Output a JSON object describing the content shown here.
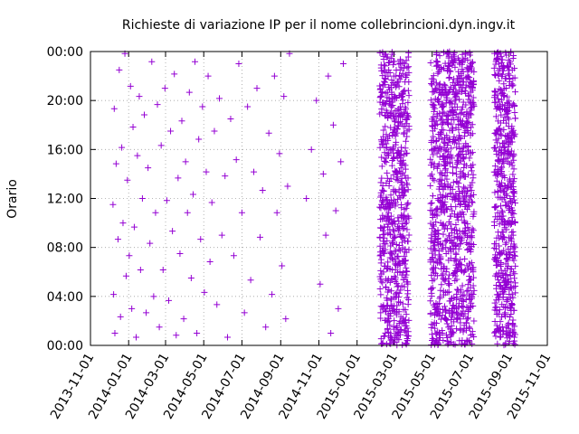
{
  "chart_data": {
    "type": "scatter",
    "title": "Richieste di variazione IP per il nome collebrincioni.dyn.ingv.it",
    "xlabel": "",
    "ylabel": "Orario",
    "x_range": [
      "2013-11-01",
      "2015-11-01"
    ],
    "y_range": [
      "00:00",
      "24:00"
    ],
    "x_ticks": [
      "2013-11-01",
      "2014-01-01",
      "2014-03-01",
      "2014-05-01",
      "2014-07-01",
      "2014-09-01",
      "2014-11-01",
      "2015-01-01",
      "2015-03-01",
      "2015-05-01",
      "2015-07-01",
      "2015-09-01",
      "2015-11-01"
    ],
    "y_ticks": [
      "00:00",
      "04:00",
      "08:00",
      "12:00",
      "16:00",
      "20:00",
      "00:00"
    ],
    "grid": true,
    "marker": "+",
    "color": "#9400d3",
    "series": [
      {
        "x": [
          "2013-12-07",
          "2013-12-08",
          "2013-12-09",
          "2013-12-10",
          "2013-12-12",
          "2013-12-15",
          "2013-12-17",
          "2013-12-19",
          "2013-12-21",
          "2013-12-23",
          "2013-12-26",
          "2013-12-28",
          "2013-12-30",
          "2014-01-02",
          "2014-01-04",
          "2014-01-06",
          "2014-01-08",
          "2014-01-10",
          "2014-01-13",
          "2014-01-15",
          "2014-01-18",
          "2014-01-20",
          "2014-01-23",
          "2014-01-26",
          "2014-01-29",
          "2014-02-01",
          "2014-02-04",
          "2014-02-07",
          "2014-02-10",
          "2014-02-13",
          "2014-02-16",
          "2014-02-19",
          "2014-02-22",
          "2014-02-25",
          "2014-02-28",
          "2014-03-03",
          "2014-03-06",
          "2014-03-09",
          "2014-03-12",
          "2014-03-15",
          "2014-03-18",
          "2014-03-21",
          "2014-03-24",
          "2014-03-27",
          "2014-03-30",
          "2014-04-02",
          "2014-04-05",
          "2014-04-08",
          "2014-04-11",
          "2014-04-14",
          "2014-04-17",
          "2014-04-20",
          "2014-04-23",
          "2014-04-26",
          "2014-04-29",
          "2014-05-02",
          "2014-05-05",
          "2014-05-08",
          "2014-05-11",
          "2014-05-14",
          "2014-05-18",
          "2014-05-22",
          "2014-05-26",
          "2014-05-30",
          "2014-06-04",
          "2014-06-08",
          "2014-06-13",
          "2014-06-18",
          "2014-06-22",
          "2014-06-26",
          "2014-07-01",
          "2014-07-05",
          "2014-07-10",
          "2014-07-15",
          "2014-07-20",
          "2014-07-25",
          "2014-07-30",
          "2014-08-03",
          "2014-08-08",
          "2014-08-13",
          "2014-08-18",
          "2014-08-22",
          "2014-08-26",
          "2014-08-30",
          "2014-09-03",
          "2014-09-06",
          "2014-09-09",
          "2014-09-12",
          "2014-09-15",
          "2014-10-12",
          "2014-10-20",
          "2014-10-28",
          "2014-11-03",
          "2014-11-08",
          "2014-11-12",
          "2014-11-16",
          "2014-11-20",
          "2014-11-24",
          "2014-11-28",
          "2014-12-02",
          "2014-12-06",
          "2014-12-10"
        ],
        "y": [
          "11:30",
          "04:10",
          "19:20",
          "01:00",
          "14:50",
          "08:40",
          "22:30",
          "02:20",
          "16:10",
          "10:00",
          "23:50",
          "05:40",
          "13:30",
          "07:20",
          "21:10",
          "03:00",
          "17:50",
          "09:40",
          "00:40",
          "15:30",
          "20:20",
          "06:10",
          "12:00",
          "18:50",
          "02:40",
          "14:30",
          "08:20",
          "23:10",
          "04:00",
          "10:50",
          "19:40",
          "01:30",
          "16:20",
          "06:10",
          "21:00",
          "11:50",
          "03:40",
          "17:30",
          "09:20",
          "22:10",
          "00:50",
          "13:40",
          "07:30",
          "18:20",
          "02:10",
          "15:00",
          "10:50",
          "20:40",
          "05:30",
          "12:20",
          "23:10",
          "01:00",
          "16:50",
          "08:40",
          "19:30",
          "04:20",
          "14:10",
          "22:00",
          "06:50",
          "11:40",
          "17:30",
          "03:20",
          "20:10",
          "09:00",
          "13:50",
          "00:40",
          "18:30",
          "07:20",
          "15:10",
          "23:00",
          "10:50",
          "02:40",
          "19:30",
          "05:20",
          "14:10",
          "21:00",
          "08:50",
          "12:40",
          "01:30",
          "17:20",
          "04:10",
          "22:00",
          "10:50",
          "15:40",
          "06:30",
          "20:20",
          "02:10",
          "13:00",
          "23:50",
          "12:00",
          "16:00",
          "20:00",
          "05:00",
          "14:00",
          "09:00",
          "22:00",
          "01:00",
          "18:00",
          "11:00",
          "03:00",
          "15:00",
          "23:00"
        ]
      }
    ],
    "dense_periods": [
      {
        "from": "2015-02-06",
        "to": "2015-03-24",
        "per_day": 14
      },
      {
        "from": "2015-04-28",
        "to": "2015-07-06",
        "per_day": 14
      },
      {
        "from": "2015-08-08",
        "to": "2015-09-10",
        "per_day": 16
      }
    ]
  }
}
